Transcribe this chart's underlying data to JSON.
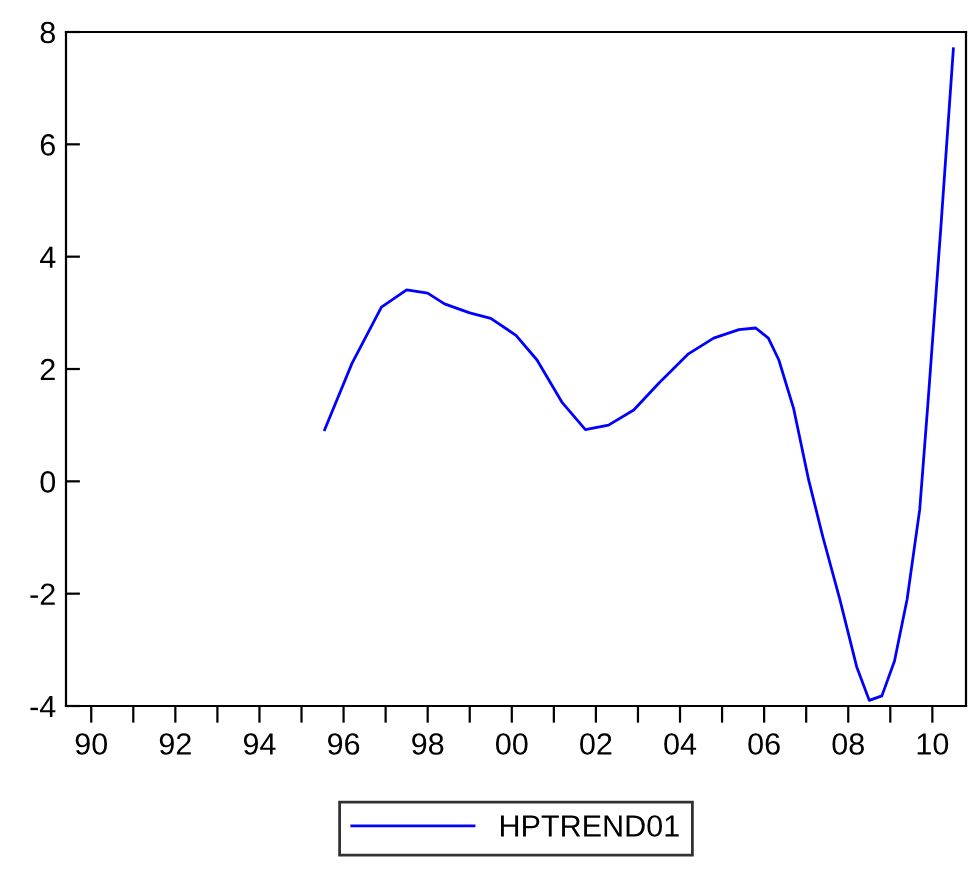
{
  "chart_data": {
    "type": "line",
    "x": [
      1995.55,
      1996.2,
      1996.9,
      1997.5,
      1998.0,
      1998.4,
      1999.0,
      1999.5,
      2000.1,
      2000.6,
      2001.2,
      2001.75,
      2002.3,
      2002.9,
      2003.5,
      2004.2,
      2004.8,
      2005.4,
      2005.8,
      2006.1,
      2006.35,
      2006.7,
      2007.06,
      2007.4,
      2007.8,
      2008.2,
      2008.5,
      2008.8,
      2009.1,
      2009.4,
      2009.7,
      2009.9,
      2010.2,
      2010.5
    ],
    "series": [
      {
        "name": "HPTREND01",
        "color": "#0000ff",
        "values": [
          0.92,
          2.1,
          3.1,
          3.41,
          3.35,
          3.16,
          3.0,
          2.9,
          2.6,
          2.16,
          1.4,
          0.92,
          1.0,
          1.27,
          1.75,
          2.27,
          2.55,
          2.7,
          2.73,
          2.55,
          2.16,
          1.3,
          0.02,
          -1.0,
          -2.1,
          -3.3,
          -3.9,
          -3.82,
          -3.2,
          -2.1,
          -0.5,
          1.44,
          4.5,
          7.7
        ]
      }
    ],
    "xlim": [
      1989.4,
      2010.8
    ],
    "xticks": [
      {
        "value": 1990,
        "label": "90"
      },
      {
        "value": 1991,
        "label": null
      },
      {
        "value": 1992,
        "label": "92"
      },
      {
        "value": 1993,
        "label": null
      },
      {
        "value": 1994,
        "label": "94"
      },
      {
        "value": 1995,
        "label": null
      },
      {
        "value": 1996,
        "label": "96"
      },
      {
        "value": 1997,
        "label": null
      },
      {
        "value": 1998,
        "label": "98"
      },
      {
        "value": 1999,
        "label": null
      },
      {
        "value": 2000,
        "label": "00"
      },
      {
        "value": 2001,
        "label": null
      },
      {
        "value": 2002,
        "label": "02"
      },
      {
        "value": 2003,
        "label": null
      },
      {
        "value": 2004,
        "label": "04"
      },
      {
        "value": 2005,
        "label": null
      },
      {
        "value": 2006,
        "label": "06"
      },
      {
        "value": 2007,
        "label": null
      },
      {
        "value": 2008,
        "label": "08"
      },
      {
        "value": 2009,
        "label": null
      },
      {
        "value": 2010,
        "label": "10"
      }
    ],
    "ylim": [
      -4,
      8
    ],
    "yticks": [
      -4,
      -2,
      0,
      2,
      4,
      6,
      8
    ],
    "legend": "bottom",
    "grid": false,
    "marker": "none",
    "line_style": "solid"
  }
}
